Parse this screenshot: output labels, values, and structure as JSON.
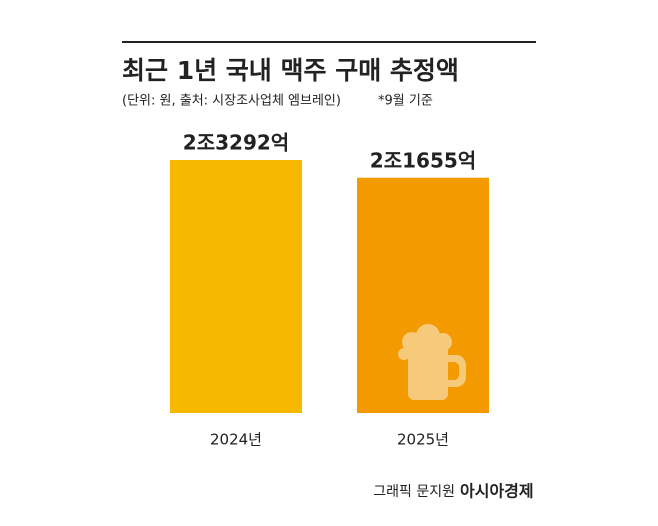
{
  "chart_data": {
    "type": "bar",
    "title": "최근 1년 국내 맥주 구매 추정액",
    "subtitle": "(단위: 원, 출처: 시장조사업체 엠브레인)",
    "note": "*9월 기준",
    "categories": [
      "2024년",
      "2025년"
    ],
    "values": [
      23292,
      21655
    ],
    "value_labels": [
      "2조3292억",
      "2조1655억"
    ],
    "colors": [
      "#f7b800",
      "#f29a00"
    ],
    "credit": "그래픽 문지원",
    "source": "아시아경제"
  }
}
